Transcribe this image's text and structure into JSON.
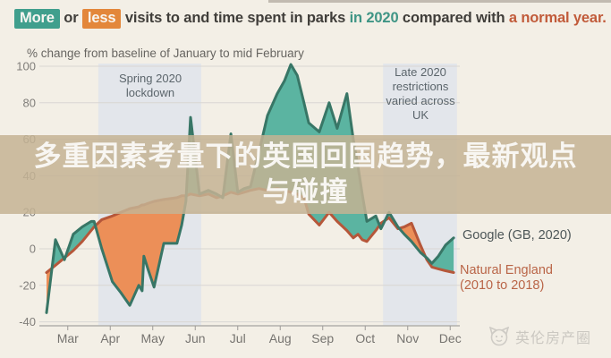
{
  "header": {
    "chip_more": "More",
    "conjunction": "or",
    "chip_less": "less",
    "middle_text": "visits to and time spent in parks",
    "in_2020": "in 2020",
    "compared_with": "compared with",
    "normal_year": "a normal year."
  },
  "subtitle": "% change from baseline of January to mid February",
  "overlay": {
    "line1": "多重因素考量下的英国回国趋势，最新观点",
    "line2": "与碰撞"
  },
  "watermark": {
    "label": "英伦房产圈",
    "icon": "cat-logo-icon"
  },
  "colors": {
    "chip_more_bg": "#2e9d8c",
    "chip_less_bg": "#e8812f",
    "accent_in_2020": "#2d9183",
    "accent_normal_year": "#c14f2e",
    "google_line": "#256e60",
    "google_fill": "#4db4a3",
    "baseline_line": "#b44b2e",
    "baseline_fill": "#f28a50",
    "band_bg": "#e7edf7",
    "gridline": "#dcdcdc",
    "axis_line": "#b0b0b0",
    "tick_label": "#6b6b6b",
    "ytick_label": "#777777"
  },
  "chart_data": {
    "type": "line",
    "title": "More or less visits to and time spent in parks in 2020 compared with a normal year.",
    "ylabel": "% change from baseline of January to mid February",
    "ylim": [
      -40,
      100
    ],
    "yticks": [
      100,
      80,
      60,
      40,
      20,
      0,
      -20,
      -40
    ],
    "x_months": [
      "Mar",
      "Apr",
      "May",
      "Jun",
      "Jul",
      "Aug",
      "Sep",
      "Oct",
      "Nov",
      "Dec"
    ],
    "x_unit": "months since 1 March 2020 (fractional)",
    "grid": true,
    "legend_position": "right-outside",
    "fill_between": true,
    "bands": [
      {
        "label": "Spring 2020 lockdown",
        "x0": 1.22,
        "x1": 3.64
      },
      {
        "label": "Late 2020 restrictions varied across UK",
        "x0": 7.92,
        "x1": 9.66
      }
    ],
    "x": [
      0.0,
      0.21,
      0.42,
      0.63,
      0.84,
      1.05,
      1.12,
      1.3,
      1.55,
      1.75,
      1.96,
      2.17,
      2.25,
      2.29,
      2.4,
      2.53,
      2.76,
      3.07,
      3.18,
      3.28,
      3.39,
      3.6,
      3.81,
      4.0,
      4.15,
      4.34,
      4.5,
      4.65,
      4.8,
      5.0,
      5.2,
      5.43,
      5.6,
      5.75,
      5.9,
      6.06,
      6.17,
      6.42,
      6.65,
      6.84,
      7.07,
      7.22,
      7.33,
      7.43,
      7.54,
      7.75,
      7.87,
      8.06,
      8.27,
      8.42,
      8.59,
      8.8,
      8.95,
      9.07,
      9.22,
      9.39,
      9.58
    ],
    "series": [
      {
        "name": "Google (GB, 2020)",
        "values": [
          -35,
          5,
          -6,
          8,
          12,
          15,
          15,
          0,
          -18,
          -24,
          -31,
          -20,
          -23,
          -4,
          -12,
          -21,
          3,
          3,
          13,
          26,
          72,
          30,
          32,
          30,
          28,
          63,
          31,
          33,
          34,
          53,
          73,
          85,
          92,
          101,
          95,
          80,
          69,
          64,
          80,
          66,
          85,
          60,
          45,
          30,
          15,
          18,
          11,
          20,
          12,
          8,
          4,
          -2,
          -5,
          -8,
          -4,
          2,
          6
        ]
      },
      {
        "name": "Natural England (2010 to 2018)",
        "values": [
          -13,
          -9,
          -5,
          -1,
          4,
          10,
          12,
          16,
          18,
          20,
          22,
          23,
          24,
          24,
          25,
          26,
          27,
          28,
          29,
          29,
          30,
          29,
          30,
          28,
          29,
          31,
          30,
          31,
          32,
          33,
          32,
          33,
          32,
          31,
          30,
          28,
          19,
          13,
          20,
          15,
          10,
          6,
          8,
          5,
          4,
          10,
          14,
          17,
          11,
          12,
          14,
          2,
          -6,
          -10,
          -11,
          -12,
          -13
        ]
      }
    ]
  }
}
